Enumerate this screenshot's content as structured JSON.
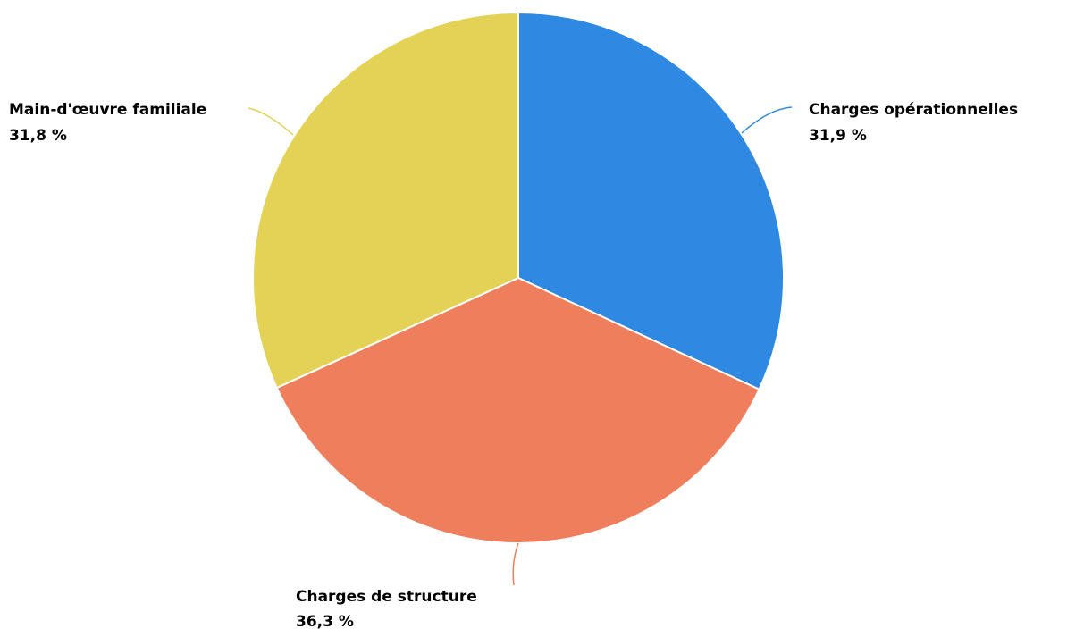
{
  "chart_data": {
    "type": "pie",
    "title": "",
    "start_angle_deg": 0,
    "direction": "clockwise",
    "slices": [
      {
        "label": "Charges opérationnelles",
        "value": 31.9,
        "value_label": "31,9 %",
        "color": "#2f89e2"
      },
      {
        "label": "Charges de structure",
        "value": 36.3,
        "value_label": "36,3 %",
        "color": "#ef7f5c"
      },
      {
        "label": "Main-d'œuvre familiale",
        "value": 31.8,
        "value_label": "31,8 %",
        "color": "#e3d256"
      }
    ]
  }
}
